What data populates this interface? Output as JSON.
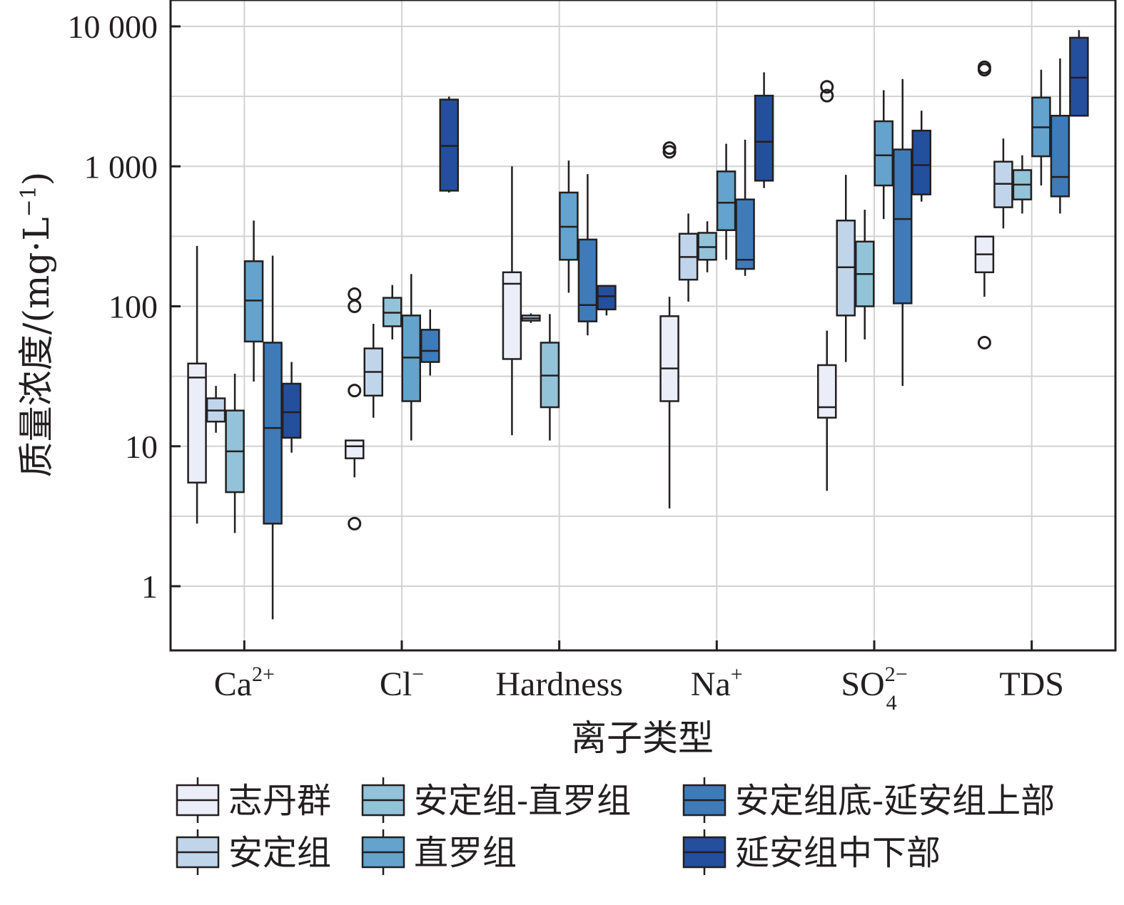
{
  "chart_data": {
    "type": "box",
    "ylabel": "质量浓度/(mg·L⁻¹)",
    "ylabel_main": "质量浓度/(mg·L",
    "ylabel_sup": "−1",
    "ylabel_close": ")",
    "xlabel": "离子类型",
    "y_scale": "log",
    "ylim": [
      0.35,
      12000
    ],
    "y_ticks": [
      {
        "value": 1,
        "label": "1"
      },
      {
        "value": 10,
        "label": "10"
      },
      {
        "value": 100,
        "label": "100"
      },
      {
        "value": 1000,
        "label": "1 000"
      },
      {
        "value": 10000,
        "label": "10 000"
      }
    ],
    "categories": [
      {
        "base": "Ca",
        "sup": "2+",
        "sub": ""
      },
      {
        "base": "Cl",
        "sup": "−",
        "sub": ""
      },
      {
        "base": "Hardness",
        "sup": "",
        "sub": ""
      },
      {
        "base": "Na",
        "sup": "+",
        "sub": ""
      },
      {
        "base": "SO",
        "sup": "2−",
        "sub": "4"
      },
      {
        "base": "TDS",
        "sup": "",
        "sub": ""
      }
    ],
    "grid": true,
    "legend_position": "bottom",
    "series": [
      {
        "name": "志丹群",
        "color": "#ebedf8",
        "boxes": [
          {
            "min": 2.8,
            "q1": 5.5,
            "median": 31,
            "q3": 39,
            "max": 270,
            "outliers": []
          },
          {
            "min": 6,
            "q1": 8.2,
            "median": 10,
            "q3": 11,
            "max": 11,
            "outliers": [
              2.8,
              25,
              100,
              122
            ]
          },
          {
            "min": 12,
            "q1": 42,
            "median": 145,
            "q3": 175,
            "max": 1000,
            "outliers": []
          },
          {
            "min": 3.6,
            "q1": 21,
            "median": 36,
            "q3": 85,
            "max": 117,
            "outliers": [
              1270,
              1350
            ]
          },
          {
            "min": 4.8,
            "q1": 16,
            "median": 19,
            "q3": 38,
            "max": 67,
            "outliers": [
              3200,
              3700
            ]
          },
          {
            "min": 117,
            "q1": 175,
            "median": 235,
            "q3": 315,
            "max": 315,
            "outliers": [
              55,
              4900,
              5100
            ]
          }
        ]
      },
      {
        "name": "安定组",
        "color": "#c0d5ea",
        "boxes": [
          {
            "min": 12.5,
            "q1": 15,
            "median": 18,
            "q3": 22,
            "max": 27,
            "outliers": []
          },
          {
            "min": 16,
            "q1": 23,
            "median": 34,
            "q3": 50,
            "max": 75,
            "outliers": []
          },
          {
            "min": 76,
            "q1": 79,
            "median": 82,
            "q3": 86,
            "max": 89,
            "outliers": []
          },
          {
            "min": 108,
            "q1": 155,
            "median": 225,
            "q3": 330,
            "max": 460,
            "outliers": []
          },
          {
            "min": 40,
            "q1": 86,
            "median": 190,
            "q3": 410,
            "max": 870,
            "outliers": []
          },
          {
            "min": 360,
            "q1": 510,
            "median": 750,
            "q3": 1080,
            "max": 1580,
            "outliers": []
          }
        ]
      },
      {
        "name": "安定组-直罗组",
        "color": "#92c3d8",
        "boxes": [
          {
            "min": 2.4,
            "q1": 4.7,
            "median": 9.2,
            "q3": 18,
            "max": 33,
            "outliers": []
          },
          {
            "min": 58,
            "q1": 72,
            "median": 90,
            "q3": 115,
            "max": 142,
            "outliers": []
          },
          {
            "min": 11,
            "q1": 19,
            "median": 32,
            "q3": 55,
            "max": 88,
            "outliers": []
          },
          {
            "min": 175,
            "q1": 215,
            "median": 265,
            "q3": 335,
            "max": 405,
            "outliers": []
          },
          {
            "min": 58,
            "q1": 100,
            "median": 170,
            "q3": 290,
            "max": 490,
            "outliers": []
          },
          {
            "min": 460,
            "q1": 580,
            "median": 740,
            "q3": 940,
            "max": 1200,
            "outliers": []
          }
        ]
      },
      {
        "name": "直罗组",
        "color": "#63a3cd",
        "boxes": [
          {
            "min": 29,
            "q1": 56,
            "median": 110,
            "q3": 210,
            "max": 410,
            "outliers": []
          },
          {
            "min": 11,
            "q1": 21,
            "median": 43,
            "q3": 86,
            "max": 170,
            "outliers": []
          },
          {
            "min": 125,
            "q1": 215,
            "median": 370,
            "q3": 650,
            "max": 1100,
            "outliers": []
          },
          {
            "min": 215,
            "q1": 350,
            "median": 550,
            "q3": 920,
            "max": 1450,
            "outliers": []
          },
          {
            "min": 420,
            "q1": 730,
            "median": 1200,
            "q3": 2100,
            "max": 3500,
            "outliers": []
          },
          {
            "min": 730,
            "q1": 1180,
            "median": 1900,
            "q3": 3100,
            "max": 4900,
            "outliers": []
          }
        ]
      },
      {
        "name": "安定组底-延安组上部",
        "color": "#3e7bb8",
        "boxes": [
          {
            "min": 0.58,
            "q1": 2.8,
            "median": 13.5,
            "q3": 55,
            "max": 230,
            "outliers": []
          },
          {
            "min": 32,
            "q1": 40,
            "median": 48,
            "q3": 68,
            "max": 95,
            "outliers": []
          },
          {
            "min": 62,
            "q1": 78,
            "median": 102,
            "q3": 300,
            "max": 880,
            "outliers": []
          },
          {
            "min": 165,
            "q1": 185,
            "median": 215,
            "q3": 580,
            "max": 1550,
            "outliers": []
          },
          {
            "min": 27,
            "q1": 105,
            "median": 420,
            "q3": 1320,
            "max": 4200,
            "outliers": []
          },
          {
            "min": 460,
            "q1": 610,
            "median": 840,
            "q3": 2300,
            "max": 5900,
            "outliers": []
          }
        ]
      },
      {
        "name": "延安组中下部",
        "color": "#244f9c",
        "boxes": [
          {
            "min": 9,
            "q1": 11.5,
            "median": 17.5,
            "q3": 28,
            "max": 40,
            "outliers": []
          },
          {
            "min": 650,
            "q1": 670,
            "median": 1400,
            "q3": 3000,
            "max": 3150,
            "outliers": []
          },
          {
            "min": 86,
            "q1": 95,
            "median": 118,
            "q3": 140,
            "max": 140,
            "outliers": []
          },
          {
            "min": 700,
            "q1": 790,
            "median": 1500,
            "q3": 3200,
            "max": 4700,
            "outliers": []
          },
          {
            "min": 560,
            "q1": 630,
            "median": 1020,
            "q3": 1800,
            "max": 2500,
            "outliers": []
          },
          {
            "min": 2300,
            "q1": 2300,
            "median": 4300,
            "q3": 8300,
            "max": 9400,
            "outliers": []
          }
        ]
      }
    ],
    "legend_order": [
      0,
      2,
      4,
      1,
      3,
      5
    ]
  }
}
